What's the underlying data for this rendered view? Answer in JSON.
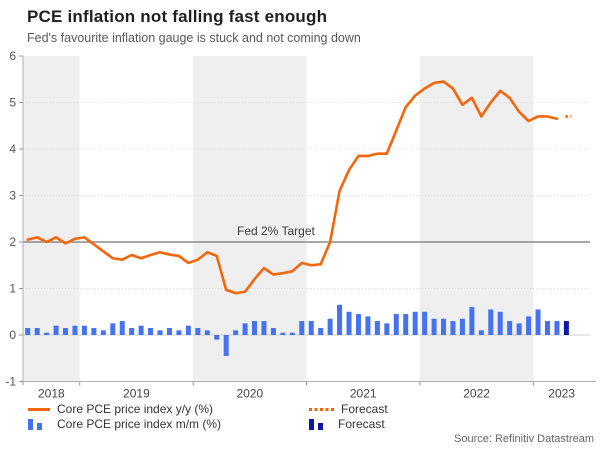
{
  "header": {
    "title": "PCE inflation not falling fast enough",
    "subtitle": "Fed's favourite inflation gauge is stuck and not coming down"
  },
  "source": "Source: Refinitiv Datastream",
  "annotations": {
    "target_label": "Fed 2% Target"
  },
  "legend": {
    "yy_label": "Core PCE price index y/y (%)",
    "mm_label": "Core PCE price index m/m (%)",
    "yy_forecast_label": "Forecast",
    "mm_forecast_label": "Forecast"
  },
  "colors": {
    "orange": "#f4660a",
    "blue": "#4472f0",
    "navy": "#0a18a8",
    "band": "#efefef",
    "target": "#8c8c8c"
  },
  "chart_data": {
    "type": "combo",
    "title": "PCE inflation not falling fast enough",
    "subtitle": "Fed's favourite inflation gauge is stuck and not coming down",
    "x_axis": {
      "start_month": "2018-07",
      "months_span": 60,
      "labels": [
        "2018",
        "2019",
        "2020",
        "2021",
        "2022",
        "2023"
      ],
      "boundaries": [
        0,
        6,
        18,
        30,
        42,
        54
      ],
      "label_spans": [
        [
          0,
          6
        ],
        [
          6,
          18
        ],
        [
          18,
          30
        ],
        [
          30,
          42
        ],
        [
          42,
          54
        ],
        [
          54,
          60
        ]
      ]
    },
    "y_axis": {
      "min": -1,
      "max": 6,
      "ticks": [
        6,
        5,
        4,
        3,
        2,
        1,
        0,
        -1
      ],
      "grid_dotted": [
        1,
        3,
        4,
        5
      ]
    },
    "target_line": {
      "value": 2,
      "label": "Fed 2% Target"
    },
    "bands": [
      [
        0,
        6
      ],
      [
        18,
        30
      ],
      [
        42,
        54
      ]
    ],
    "legend_position": "bottom",
    "series": [
      {
        "id": "yy",
        "name": "Core PCE price index y/y (%)",
        "type": "line",
        "color": "#f4660a",
        "offset": 0,
        "values": [
          2.05,
          2.1,
          2.0,
          2.1,
          1.97,
          2.07,
          2.1,
          1.95,
          1.8,
          1.65,
          1.62,
          1.72,
          1.65,
          1.72,
          1.78,
          1.73,
          1.7,
          1.55,
          1.62,
          1.78,
          1.7,
          0.97,
          0.9,
          0.93,
          1.2,
          1.44,
          1.3,
          1.33,
          1.37,
          1.55,
          1.5,
          1.52,
          2.0,
          3.1,
          3.55,
          3.85,
          3.85,
          3.9,
          3.9,
          4.4,
          4.9,
          5.15,
          5.3,
          5.42,
          5.45,
          5.3,
          4.95,
          5.1,
          4.7,
          5.0,
          5.25,
          5.1,
          4.8,
          4.6,
          4.7,
          4.7,
          4.65
        ]
      },
      {
        "id": "yy_forecast",
        "name": "Forecast",
        "type": "line-dotted",
        "color": "#f4660a",
        "offset": 57,
        "values": [
          4.7
        ]
      },
      {
        "id": "mm",
        "name": "Core PCE price index m/m (%)",
        "type": "bar",
        "color": "#4472f0",
        "offset": 0,
        "values": [
          0.15,
          0.15,
          0.05,
          0.2,
          0.15,
          0.2,
          0.2,
          0.15,
          0.1,
          0.25,
          0.3,
          0.15,
          0.2,
          0.15,
          0.1,
          0.15,
          0.1,
          0.2,
          0.15,
          0.1,
          -0.1,
          -0.45,
          0.1,
          0.25,
          0.3,
          0.3,
          0.15,
          0.05,
          0.05,
          0.3,
          0.3,
          0.15,
          0.35,
          0.65,
          0.5,
          0.45,
          0.4,
          0.3,
          0.25,
          0.45,
          0.45,
          0.5,
          0.5,
          0.35,
          0.35,
          0.3,
          0.35,
          0.6,
          0.1,
          0.55,
          0.5,
          0.3,
          0.25,
          0.4,
          0.55,
          0.3,
          0.3
        ]
      },
      {
        "id": "mm_forecast",
        "name": "Forecast",
        "type": "bar",
        "color": "#0a18a8",
        "offset": 57,
        "values": [
          0.3
        ]
      }
    ]
  }
}
